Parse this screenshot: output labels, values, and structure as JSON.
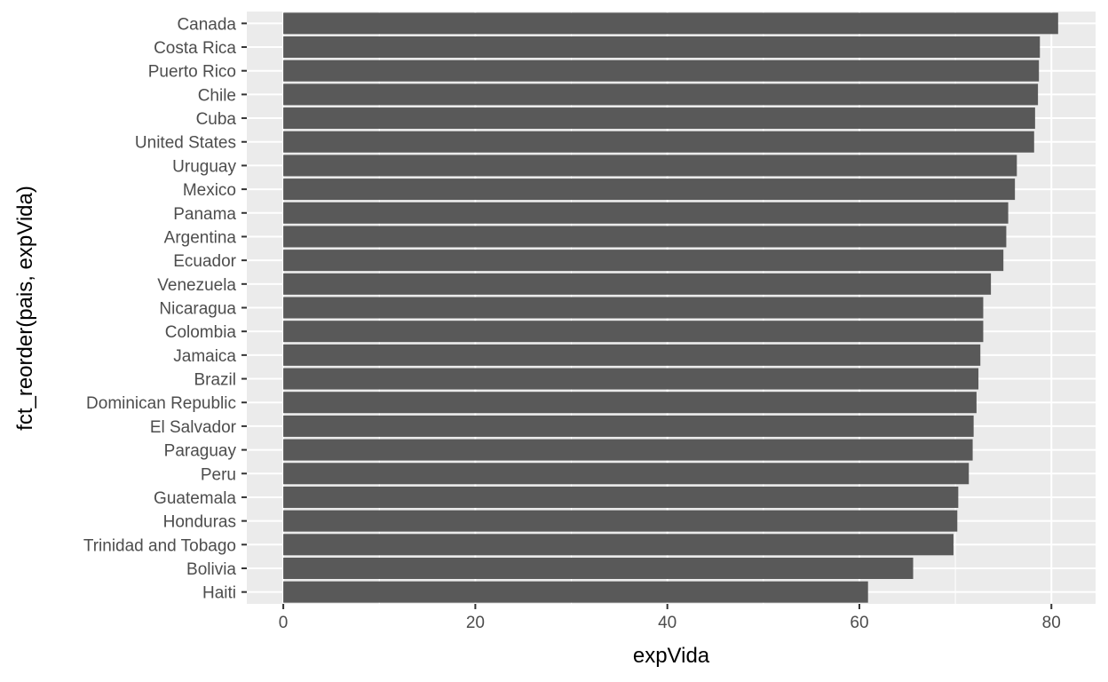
{
  "chart_data": {
    "type": "bar",
    "orientation": "horizontal",
    "xlabel": "expVida",
    "ylabel": "fct_reorder(pais, expVida)",
    "xlim": [
      -3.8,
      84.6
    ],
    "x_ticks": [
      0,
      20,
      40,
      60,
      80
    ],
    "grid": true,
    "colors": {
      "panel": "#ebebeb",
      "grid": "#ffffff",
      "bar": "#595959",
      "tick_text": "#4d4d4d",
      "tick_mark": "#333333"
    },
    "categories": [
      "Canada",
      "Costa Rica",
      "Puerto Rico",
      "Chile",
      "Cuba",
      "United States",
      "Uruguay",
      "Mexico",
      "Panama",
      "Argentina",
      "Ecuador",
      "Venezuela",
      "Nicaragua",
      "Colombia",
      "Jamaica",
      "Brazil",
      "Dominican Republic",
      "El Salvador",
      "Paraguay",
      "Peru",
      "Guatemala",
      "Honduras",
      "Trinidad and Tobago",
      "Bolivia",
      "Haiti"
    ],
    "values": [
      80.7,
      78.8,
      78.7,
      78.6,
      78.3,
      78.2,
      76.4,
      76.2,
      75.5,
      75.3,
      75.0,
      73.7,
      72.9,
      72.9,
      72.6,
      72.4,
      72.2,
      71.9,
      71.8,
      71.4,
      70.3,
      70.2,
      69.8,
      65.6,
      60.9
    ]
  }
}
